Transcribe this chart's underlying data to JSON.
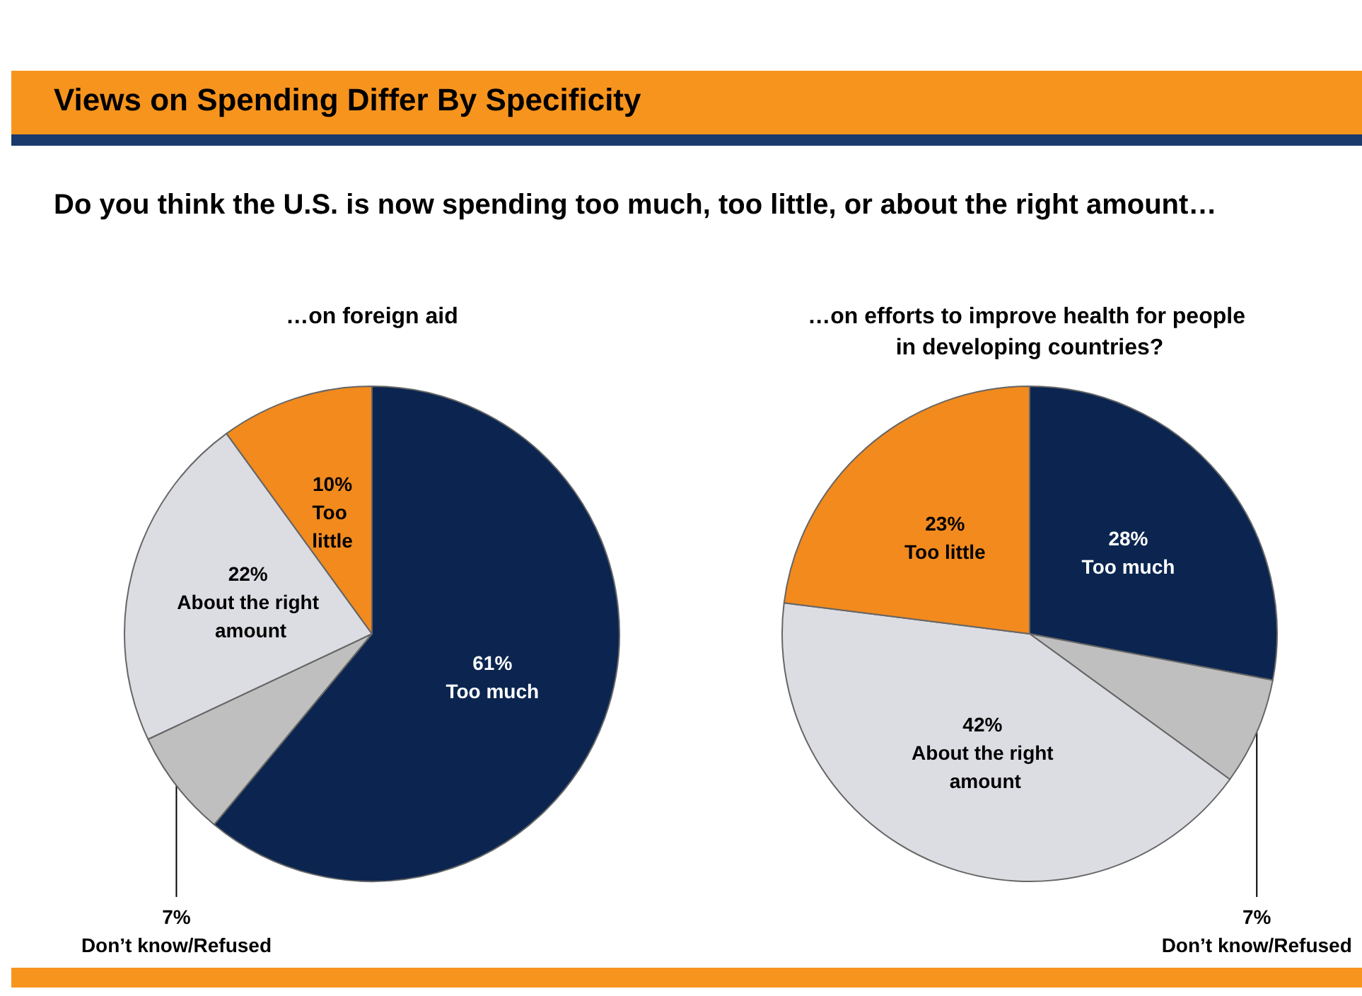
{
  "chart_data": [
    {
      "type": "other",
      "title": "Views on Spending Differ By Specificity",
      "subtitle": "Do you think the U.S. is now spending too much, too little, or about the right amount…"
    },
    {
      "type": "pie",
      "title": "…on foreign aid",
      "categories": [
        "Too much",
        "Don’t know/Refused",
        "About the right amount",
        "Too little"
      ],
      "values": [
        61,
        7,
        22,
        10
      ],
      "value_labels": [
        "61%",
        "7%",
        "22%",
        "10%"
      ],
      "colors": [
        "#0b2550",
        "#bfbfbf",
        "#dcdce3",
        "#f28a1e"
      ]
    },
    {
      "type": "pie",
      "title": "…on efforts to improve health for people in developing countries?",
      "categories": [
        "Too much",
        "Don’t know/Refused",
        "About the right amount",
        "Too little"
      ],
      "values": [
        28,
        7,
        42,
        23
      ],
      "value_labels": [
        "28%",
        "7%",
        "42%",
        "23%"
      ],
      "colors": [
        "#0b2550",
        "#bfbfbf",
        "#dcdce3",
        "#f28a1e"
      ]
    }
  ]
}
